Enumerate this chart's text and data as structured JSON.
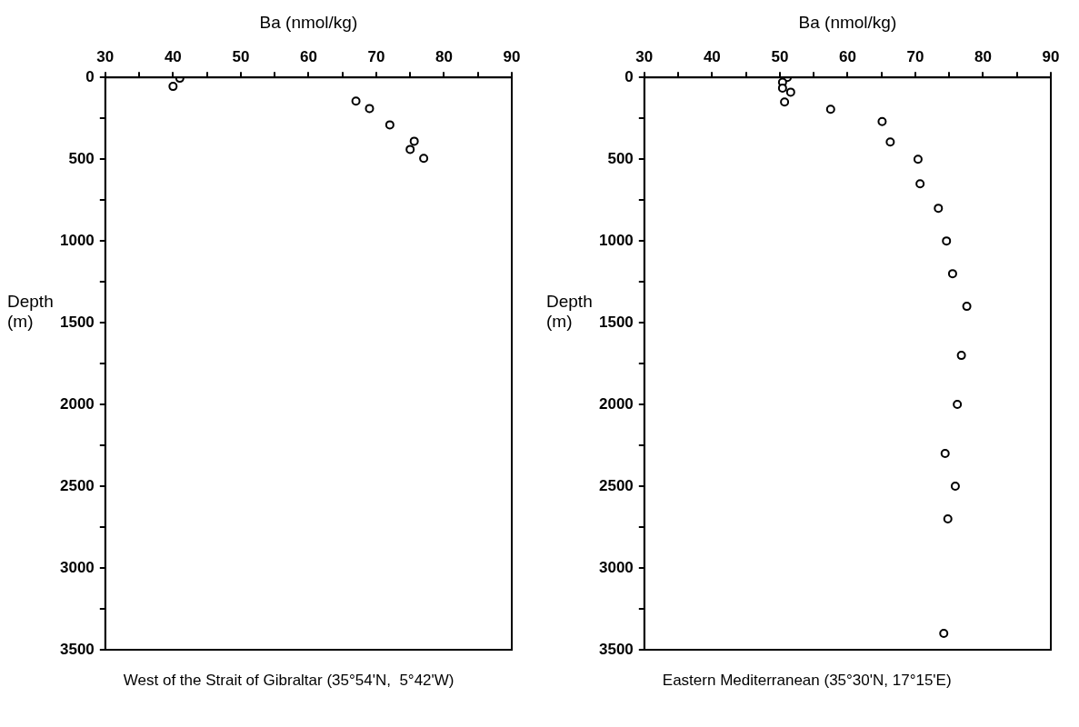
{
  "chart_data": [
    {
      "type": "scatter",
      "xlabel": "Ba (nmol/kg)",
      "ylabel": "Depth (m)",
      "marker": "circle",
      "annotations": [
        "West of the Strait of Gibraltar (35°54'N,  5°42'W)"
      ],
      "series": [
        {
          "color": "#000000",
          "x": [
            41,
            40,
            67,
            69,
            72,
            75.6,
            75,
            77
          ],
          "values": [
            5,
            55,
            145,
            190,
            290,
            390,
            440,
            495
          ]
        }
      ],
      "xlim": [
        30,
        90
      ],
      "xticks": [
        30,
        {
          "value": 35,
          "label": null
        },
        40,
        {
          "value": 45,
          "label": null
        },
        50,
        {
          "value": 55,
          "label": null
        },
        60,
        {
          "value": 65,
          "label": null
        },
        70,
        {
          "value": 75,
          "label": null
        },
        80,
        {
          "value": 85,
          "label": null
        },
        90
      ],
      "ylim": [
        3500,
        0
      ],
      "yticks": [
        0,
        {
          "value": 250,
          "label": null
        },
        500,
        {
          "value": 750,
          "label": null
        },
        1000,
        {
          "value": 1250,
          "label": null
        },
        1500,
        {
          "value": 1750,
          "label": null
        },
        2000,
        {
          "value": 2250,
          "label": null
        },
        2500,
        {
          "value": 2750,
          "label": null
        },
        3000,
        {
          "value": 3250,
          "label": null
        },
        3500
      ]
    },
    {
      "type": "scatter",
      "xlabel": "Ba (nmol/kg)",
      "ylabel": "Depth (m)",
      "marker": "circle",
      "annotations": [
        "Eastern Mediterranean (35°30'N, 17°15'E)"
      ],
      "series": [
        {
          "color": "#000000",
          "x": [
            51.1,
            50.4,
            50.4,
            51.6,
            50.7,
            57.5,
            65.1,
            66.3,
            70.4,
            70.7,
            73.4,
            74.6,
            75.5,
            77.6,
            76.8,
            76.2,
            74.4,
            75.9,
            74.8,
            74.2
          ],
          "values": [
            0,
            30,
            65,
            90,
            150,
            195,
            270,
            395,
            500,
            650,
            800,
            1000,
            1200,
            1400,
            1700,
            2000,
            2300,
            2500,
            2700,
            3400
          ]
        }
      ],
      "xlim": [
        30,
        90
      ],
      "xticks": [
        30,
        {
          "value": 35,
          "label": null
        },
        40,
        {
          "value": 45,
          "label": null
        },
        50,
        {
          "value": 55,
          "label": null
        },
        60,
        {
          "value": 65,
          "label": null
        },
        70,
        {
          "value": 75,
          "label": null
        },
        80,
        {
          "value": 85,
          "label": null
        },
        90
      ],
      "ylim": [
        3500,
        0
      ],
      "yticks": [
        0,
        {
          "value": 250,
          "label": null
        },
        500,
        {
          "value": 750,
          "label": null
        },
        1000,
        {
          "value": 1250,
          "label": null
        },
        1500,
        {
          "value": 1750,
          "label": null
        },
        2000,
        {
          "value": 2250,
          "label": null
        },
        2500,
        {
          "value": 2750,
          "label": null
        },
        3000,
        {
          "value": 3250,
          "label": null
        },
        3500
      ]
    }
  ]
}
